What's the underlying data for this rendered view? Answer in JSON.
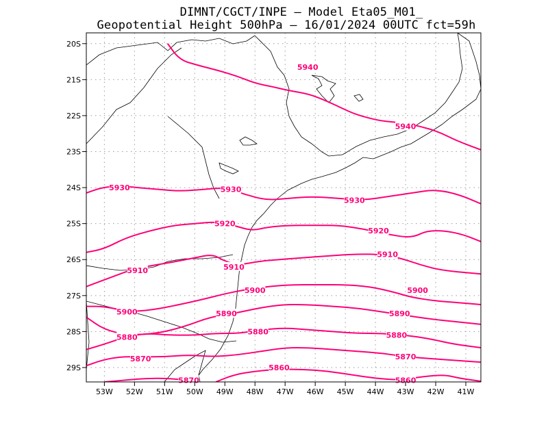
{
  "header": {
    "line1": "DIMNT/CGCT/INPE  –   Model Eta05_M01_",
    "line2": "Geopotential Height 500hPa  –   16/01/2024 00UTC fct=59h"
  },
  "colors": {
    "contour": "#ff0077",
    "coast": "#000000",
    "grid": "#9a9a9a"
  },
  "chart_data": {
    "type": "contour_map",
    "variable": "Geopotential Height 500hPa",
    "model": "Eta05_M01_",
    "valid": "16/01/2024 00UTC fct=59h",
    "lon_range": [
      -53.6,
      -40.5
    ],
    "lat_range": [
      -29.4,
      -19.7
    ],
    "y_ticks": [
      {
        "label": "20S",
        "lat": -20
      },
      {
        "label": "21S",
        "lat": -21
      },
      {
        "label": "22S",
        "lat": -22
      },
      {
        "label": "23S",
        "lat": -23
      },
      {
        "label": "24S",
        "lat": -24
      },
      {
        "label": "25S",
        "lat": -25
      },
      {
        "label": "26S",
        "lat": -26
      },
      {
        "label": "27S",
        "lat": -27
      },
      {
        "label": "28S",
        "lat": -28
      },
      {
        "label": "29S",
        "lat": -29
      }
    ],
    "x_ticks": [
      {
        "label": "53W",
        "lon": -53
      },
      {
        "label": "52W",
        "lon": -52
      },
      {
        "label": "51W",
        "lon": -51
      },
      {
        "label": "50W",
        "lon": -50
      },
      {
        "label": "49W",
        "lon": -49
      },
      {
        "label": "48W",
        "lon": -48
      },
      {
        "label": "47W",
        "lon": -47
      },
      {
        "label": "46W",
        "lon": -46
      },
      {
        "label": "45W",
        "lon": -45
      },
      {
        "label": "44W",
        "lon": -44
      },
      {
        "label": "43W",
        "lon": -43
      },
      {
        "label": "42W",
        "lon": -42
      },
      {
        "label": "41W",
        "lon": -41
      }
    ],
    "contours": [
      {
        "value": 5940,
        "points": [
          [
            -50.9,
            -20.0
          ],
          [
            -50.5,
            -20.45
          ],
          [
            -49.9,
            -20.6
          ],
          [
            -49.2,
            -20.75
          ],
          [
            -48.6,
            -20.9
          ],
          [
            -48.0,
            -21.1
          ],
          [
            -47.4,
            -21.2
          ],
          [
            -46.9,
            -21.3
          ],
          [
            -46.2,
            -21.4
          ],
          [
            -45.6,
            -21.6
          ],
          [
            -45.1,
            -21.8
          ],
          [
            -44.7,
            -21.95
          ],
          [
            -44.3,
            -22.05
          ],
          [
            -43.8,
            -22.15
          ],
          [
            -43.1,
            -22.2
          ],
          [
            -42.5,
            -22.3
          ],
          [
            -41.9,
            -22.45
          ],
          [
            -41.3,
            -22.7
          ],
          [
            -40.5,
            -22.95
          ]
        ],
        "labels": [
          [
            -46.25,
            -20.65
          ],
          [
            -43.0,
            -22.3
          ]
        ]
      },
      {
        "value": 5930,
        "points": [
          [
            -53.6,
            -24.15
          ],
          [
            -53.1,
            -24.0
          ],
          [
            -52.5,
            -23.95
          ],
          [
            -51.9,
            -24.0
          ],
          [
            -51.2,
            -24.05
          ],
          [
            -50.5,
            -24.1
          ],
          [
            -49.7,
            -24.05
          ],
          [
            -49.0,
            -24.0
          ],
          [
            -48.3,
            -24.2
          ],
          [
            -47.6,
            -24.35
          ],
          [
            -46.9,
            -24.3
          ],
          [
            -46.1,
            -24.25
          ],
          [
            -45.2,
            -24.3
          ],
          [
            -44.4,
            -24.35
          ],
          [
            -43.6,
            -24.25
          ],
          [
            -42.8,
            -24.15
          ],
          [
            -42.0,
            -24.05
          ],
          [
            -41.2,
            -24.2
          ],
          [
            -40.5,
            -24.45
          ]
        ],
        "labels": [
          [
            -52.5,
            -24.0
          ],
          [
            -48.8,
            -24.05
          ],
          [
            -44.7,
            -24.35
          ]
        ]
      },
      {
        "value": 5920,
        "points": [
          [
            -53.6,
            -25.8
          ],
          [
            -53.0,
            -25.7
          ],
          [
            -52.3,
            -25.4
          ],
          [
            -51.5,
            -25.2
          ],
          [
            -50.7,
            -25.05
          ],
          [
            -50.0,
            -25.0
          ],
          [
            -49.3,
            -24.95
          ],
          [
            -48.7,
            -25.05
          ],
          [
            -48.1,
            -25.2
          ],
          [
            -47.6,
            -25.1
          ],
          [
            -46.9,
            -25.05
          ],
          [
            -46.0,
            -25.05
          ],
          [
            -45.2,
            -25.05
          ],
          [
            -44.4,
            -25.15
          ],
          [
            -43.6,
            -25.3
          ],
          [
            -42.8,
            -25.4
          ],
          [
            -42.3,
            -25.2
          ],
          [
            -41.7,
            -25.2
          ],
          [
            -41.1,
            -25.3
          ],
          [
            -40.5,
            -25.5
          ]
        ],
        "labels": [
          [
            -49.0,
            -25.0
          ],
          [
            -43.9,
            -25.2
          ]
        ]
      },
      {
        "value": 5910,
        "points": [
          [
            -53.6,
            -26.75
          ],
          [
            -52.8,
            -26.5
          ],
          [
            -52.0,
            -26.25
          ],
          [
            -51.3,
            -26.15
          ],
          [
            -50.6,
            -26.05
          ],
          [
            -50.0,
            -25.95
          ],
          [
            -49.4,
            -25.85
          ],
          [
            -49.0,
            -26.05
          ],
          [
            -48.5,
            -26.15
          ],
          [
            -47.9,
            -26.05
          ],
          [
            -47.2,
            -26.0
          ],
          [
            -46.4,
            -25.95
          ],
          [
            -45.6,
            -25.9
          ],
          [
            -44.7,
            -25.85
          ],
          [
            -43.9,
            -25.85
          ],
          [
            -43.2,
            -25.95
          ],
          [
            -42.5,
            -26.15
          ],
          [
            -41.8,
            -26.3
          ],
          [
            -40.5,
            -26.4
          ]
        ],
        "labels": [
          [
            -51.9,
            -26.3
          ],
          [
            -48.7,
            -26.2
          ],
          [
            -43.6,
            -25.85
          ]
        ]
      },
      {
        "value": 5900,
        "points": [
          [
            -53.6,
            -27.3
          ],
          [
            -53.0,
            -27.3
          ],
          [
            -52.2,
            -27.45
          ],
          [
            -51.4,
            -27.4
          ],
          [
            -50.5,
            -27.25
          ],
          [
            -49.7,
            -27.1
          ],
          [
            -49.0,
            -26.95
          ],
          [
            -48.4,
            -26.85
          ],
          [
            -47.6,
            -26.75
          ],
          [
            -46.8,
            -26.7
          ],
          [
            -45.9,
            -26.7
          ],
          [
            -45.0,
            -26.7
          ],
          [
            -44.2,
            -26.75
          ],
          [
            -43.4,
            -26.9
          ],
          [
            -42.8,
            -27.05
          ],
          [
            -42.0,
            -27.15
          ],
          [
            -41.2,
            -27.2
          ],
          [
            -40.5,
            -27.25
          ]
        ],
        "labels": [
          [
            -52.25,
            -27.45
          ],
          [
            -48.0,
            -26.85
          ],
          [
            -42.6,
            -26.85
          ]
        ]
      },
      {
        "value": 5890,
        "points": [
          [
            -53.6,
            -27.6
          ],
          [
            -53.0,
            -27.95
          ],
          [
            -52.2,
            -28.1
          ],
          [
            -51.2,
            -28.05
          ],
          [
            -50.3,
            -27.85
          ],
          [
            -49.5,
            -27.6
          ],
          [
            -48.7,
            -27.5
          ],
          [
            -47.9,
            -27.35
          ],
          [
            -47.1,
            -27.25
          ],
          [
            -46.3,
            -27.25
          ],
          [
            -45.4,
            -27.3
          ],
          [
            -44.6,
            -27.35
          ],
          [
            -43.8,
            -27.45
          ],
          [
            -43.0,
            -27.55
          ],
          [
            -42.2,
            -27.65
          ],
          [
            -41.4,
            -27.72
          ],
          [
            -40.5,
            -27.8
          ]
        ],
        "labels": [
          [
            -52.25,
            -28.1
          ],
          [
            -48.95,
            -27.5
          ],
          [
            -43.2,
            -27.5
          ]
        ]
      },
      {
        "value": 5880,
        "points": [
          [
            -53.6,
            -28.5
          ],
          [
            -53.0,
            -28.35
          ],
          [
            -52.3,
            -28.15
          ],
          [
            -51.6,
            -28.05
          ],
          [
            -50.8,
            -28.1
          ],
          [
            -50.0,
            -28.1
          ],
          [
            -49.3,
            -28.05
          ],
          [
            -48.5,
            -28.05
          ],
          [
            -47.8,
            -27.95
          ],
          [
            -47.0,
            -27.9
          ],
          [
            -46.2,
            -27.95
          ],
          [
            -45.4,
            -28.0
          ],
          [
            -44.6,
            -28.05
          ],
          [
            -43.8,
            -28.05
          ],
          [
            -43.0,
            -28.1
          ],
          [
            -42.2,
            -28.2
          ],
          [
            -41.4,
            -28.35
          ],
          [
            -40.5,
            -28.45
          ]
        ],
        "labels": [
          [
            -52.25,
            -28.15
          ],
          [
            -47.9,
            -28.0
          ],
          [
            -43.3,
            -28.1
          ]
        ]
      },
      {
        "value": 5870,
        "points": [
          [
            -53.6,
            -28.95
          ],
          [
            -53.1,
            -28.8
          ],
          [
            -52.5,
            -28.7
          ],
          [
            -51.8,
            -28.7
          ],
          [
            -51.0,
            -28.7
          ],
          [
            -50.2,
            -28.65
          ],
          [
            -49.4,
            -28.7
          ],
          [
            -48.6,
            -28.65
          ],
          [
            -47.8,
            -28.55
          ],
          [
            -47.0,
            -28.45
          ],
          [
            -46.2,
            -28.45
          ],
          [
            -45.4,
            -28.5
          ],
          [
            -44.6,
            -28.55
          ],
          [
            -43.8,
            -28.6
          ],
          [
            -43.0,
            -28.7
          ],
          [
            -42.2,
            -28.75
          ],
          [
            -41.4,
            -28.8
          ],
          [
            -40.5,
            -28.85
          ]
        ],
        "labels": [
          [
            -51.8,
            -28.75
          ],
          [
            -43.0,
            -28.7
          ]
        ]
      },
      {
        "value": 5870,
        "points": [
          [
            -53.0,
            -29.4
          ],
          [
            -52.3,
            -29.35
          ],
          [
            -51.6,
            -29.3
          ],
          [
            -50.9,
            -29.3
          ],
          [
            -50.3,
            -29.35
          ],
          [
            -49.9,
            -29.4
          ]
        ],
        "labels": [
          [
            -50.2,
            -29.35
          ]
        ]
      },
      {
        "value": 5860,
        "points": [
          [
            -49.3,
            -29.4
          ],
          [
            -48.7,
            -29.2
          ],
          [
            -48.0,
            -29.1
          ],
          [
            -47.2,
            -29.05
          ],
          [
            -46.4,
            -29.05
          ],
          [
            -45.6,
            -29.1
          ],
          [
            -44.8,
            -29.2
          ],
          [
            -44.0,
            -29.3
          ],
          [
            -43.2,
            -29.35
          ],
          [
            -42.4,
            -29.25
          ],
          [
            -41.7,
            -29.2
          ],
          [
            -41.2,
            -29.3
          ],
          [
            -40.5,
            -29.38
          ]
        ],
        "labels": [
          [
            -47.2,
            -29.0
          ],
          [
            -43.0,
            -29.35
          ]
        ]
      }
    ]
  }
}
